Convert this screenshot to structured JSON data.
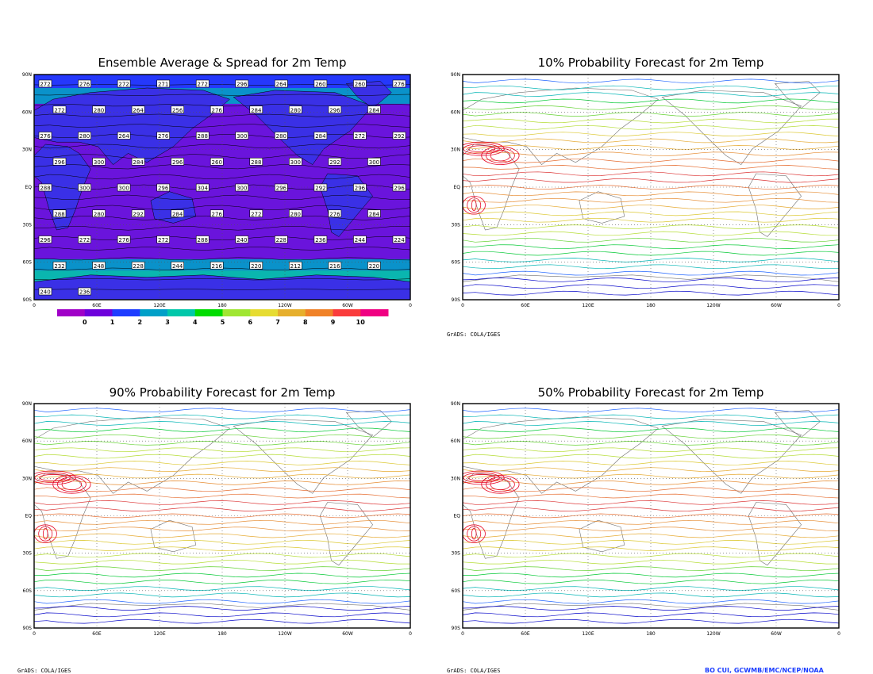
{
  "panels": [
    {
      "id": "ensemble",
      "title": "Ensemble Average & Spread for 2m Temp",
      "style": "shaded"
    },
    {
      "id": "p10",
      "title": "10% Probability Forecast for 2m Temp",
      "style": "contour"
    },
    {
      "id": "p90",
      "title": "90% Probability Forecast for 2m Temp",
      "style": "contour"
    },
    {
      "id": "p50",
      "title": "50% Probability Forecast for 2m Temp",
      "style": "contour"
    }
  ],
  "lat_labels": [
    "90N",
    "60N",
    "30N",
    "EQ",
    "30S",
    "60S",
    "90S"
  ],
  "lon_labels": [
    "0",
    "60E",
    "120E",
    "180",
    "120W",
    "60W",
    "0"
  ],
  "colorbar": {
    "labels": [
      "0",
      "1",
      "2",
      "3",
      "4",
      "5",
      "6",
      "7",
      "8",
      "9",
      "10"
    ],
    "colors": [
      "#a000c8",
      "#6e00dc",
      "#1e3cff",
      "#00a0c8",
      "#00c8aa",
      "#00dc00",
      "#a0e632",
      "#e6dc32",
      "#e6af2d",
      "#f08228",
      "#fa3c3c",
      "#f00082"
    ]
  },
  "credits": {
    "grads_1": "GrADS: COLA/IGES",
    "grads_2": "GrADS: COLA/IGES",
    "grads_3": "GrADS: COLA/IGES",
    "author": "BO CUI, GCWMB/EMC/NCEP/NOAA"
  },
  "ensemble_labels": [
    "272",
    "276",
    "272",
    "271",
    "272",
    "296",
    "264",
    "260",
    "260",
    "276",
    "272",
    "280",
    "264",
    "256",
    "276",
    "284",
    "280",
    "296",
    "284",
    "288",
    "276",
    "280",
    "264",
    "276",
    "288",
    "300",
    "280",
    "284",
    "272",
    "292",
    "296",
    "300",
    "284",
    "296",
    "260",
    "288",
    "300",
    "292",
    "300",
    "300",
    "288",
    "300",
    "300",
    "296",
    "304",
    "300",
    "296",
    "292",
    "296",
    "296",
    "288",
    "280",
    "292",
    "284",
    "276",
    "272",
    "280",
    "276",
    "284",
    "296",
    "296",
    "272",
    "276",
    "272",
    "288",
    "240",
    "228",
    "236",
    "244",
    "224",
    "232",
    "248",
    "228",
    "244",
    "216",
    "220",
    "212",
    "216",
    "220",
    "232",
    "240",
    "236"
  ],
  "colors": {
    "frame": "#000000",
    "ocean_fill": "#6a14dc",
    "grid_dots": "#555555"
  }
}
